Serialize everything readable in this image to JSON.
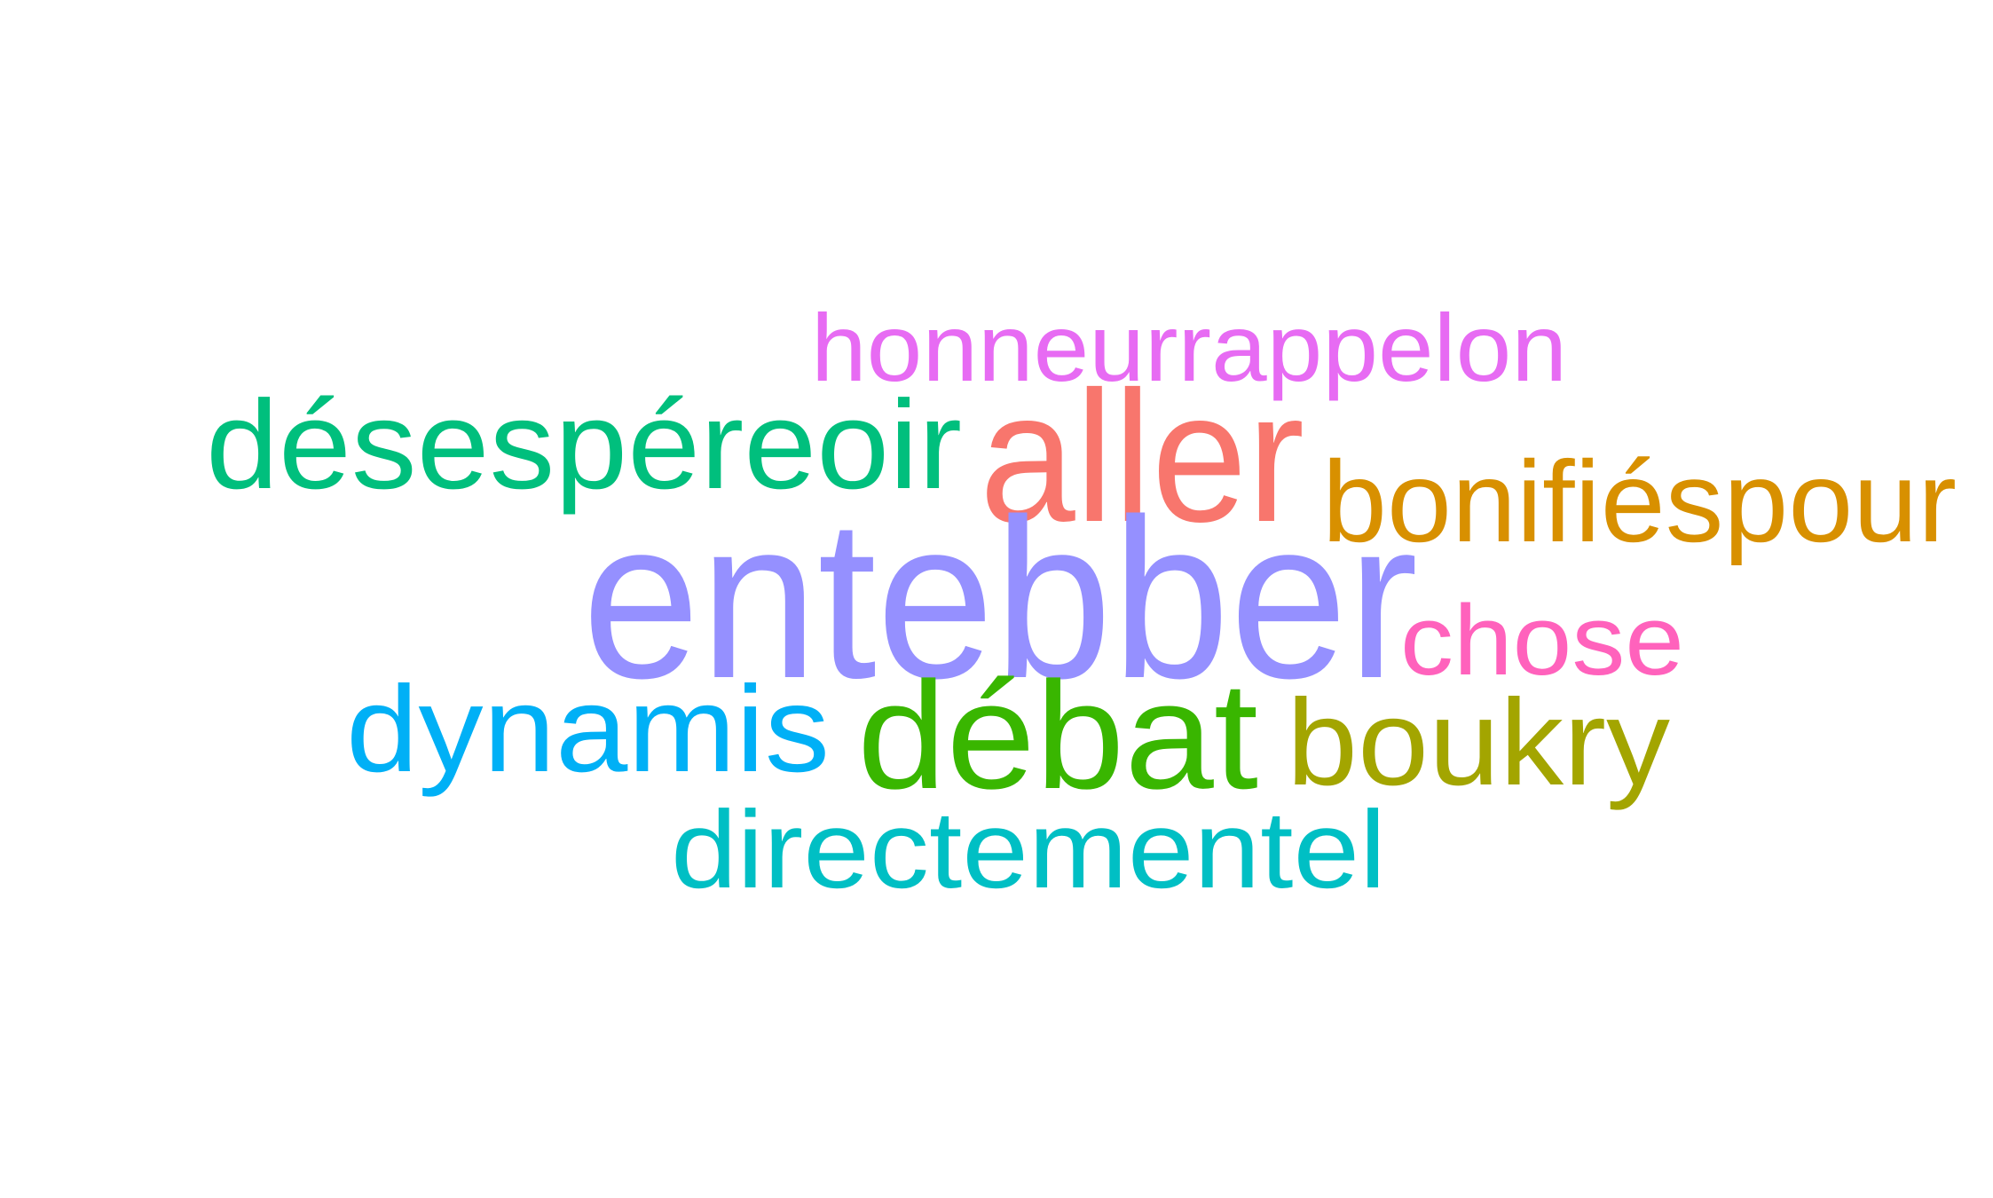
{
  "word_cloud": {
    "words": [
      {
        "id": "honneurrappelon",
        "text": "honneurrappelon",
        "color": "#E76BF3"
      },
      {
        "id": "desesperereoir",
        "text": "désespéreoir",
        "color": "#00BF7D"
      },
      {
        "id": "aller",
        "text": "aller",
        "color": "#F8766D"
      },
      {
        "id": "bonifiespour",
        "text": "bonifiéspour",
        "color": "#D89000"
      },
      {
        "id": "entebber",
        "text": "entebber",
        "color": "#9590FF"
      },
      {
        "id": "chose",
        "text": "chose",
        "color": "#FF62BC"
      },
      {
        "id": "dynamis",
        "text": "dynamis",
        "color": "#00B0F6"
      },
      {
        "id": "debat",
        "text": "débat",
        "color": "#39B600"
      },
      {
        "id": "boukry",
        "text": "boukry",
        "color": "#A3A500"
      },
      {
        "id": "directementel",
        "text": "directementel",
        "color": "#00BFC4"
      }
    ]
  }
}
